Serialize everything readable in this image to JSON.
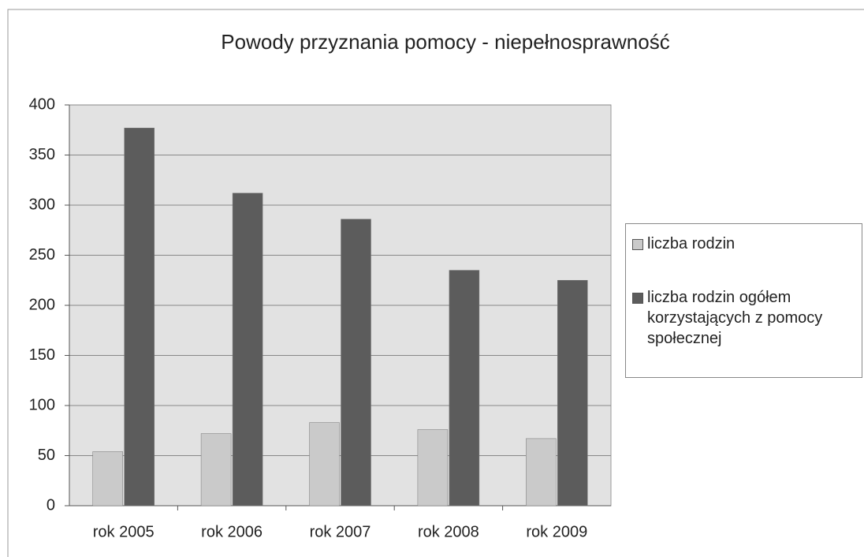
{
  "chart_data": {
    "type": "bar",
    "title": "Powody przyznania pomocy - niepełnosprawność",
    "categories": [
      "rok 2005",
      "rok 2006",
      "rok 2007",
      "rok 2008",
      "rok 2009"
    ],
    "series": [
      {
        "name": "liczba rodzin",
        "color": "#cacaca",
        "values": [
          54,
          72,
          83,
          76,
          67
        ]
      },
      {
        "name": "liczba rodzin ogółem korzystających z pomocy społecznej",
        "color": "#5c5c5c",
        "values": [
          377,
          312,
          286,
          235,
          225
        ]
      }
    ],
    "ylim": [
      0,
      400
    ],
    "yticks": [
      0,
      50,
      100,
      150,
      200,
      250,
      300,
      350,
      400
    ],
    "grid": true,
    "legend": "right"
  }
}
